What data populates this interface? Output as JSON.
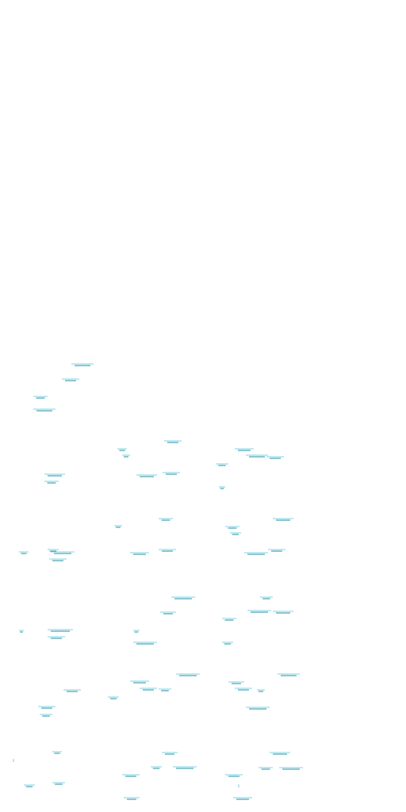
{
  "palette": {
    "background": "#ffffff",
    "dash_dark": "#1c8fa6",
    "dash_light": "#7fd3e3"
  }
}
